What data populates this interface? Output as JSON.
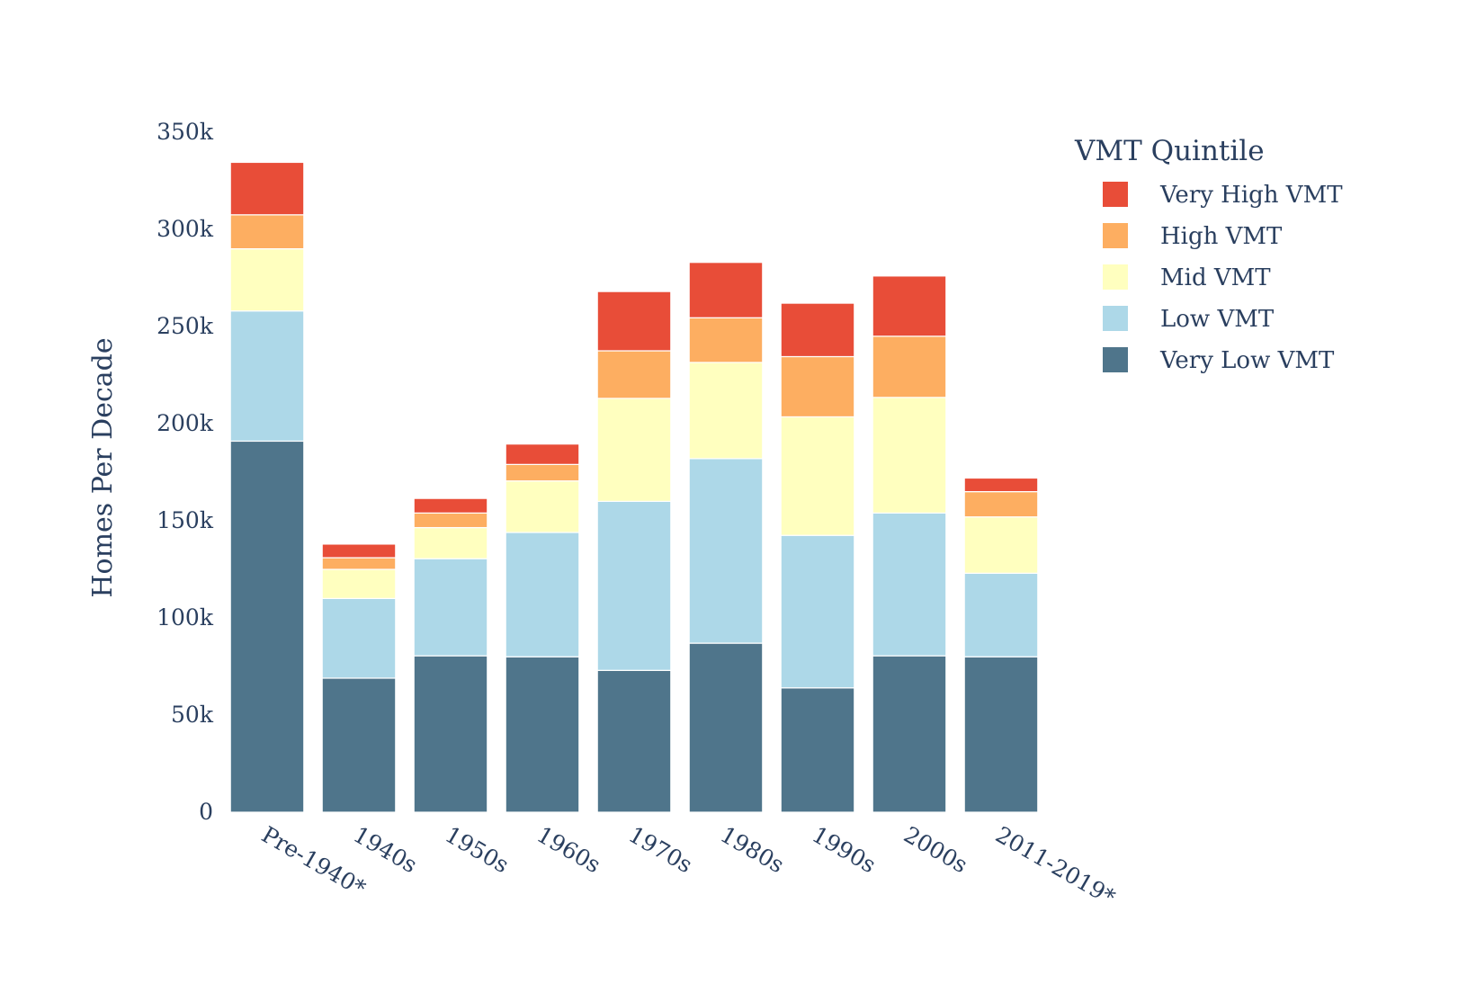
{
  "chart_data": {
    "type": "bar",
    "stacked": true,
    "title": "",
    "xlabel": "",
    "ylabel": "Homes Per Decade",
    "ylim": [
      0,
      350000
    ],
    "yticks": [
      0,
      50000,
      100000,
      150000,
      200000,
      250000,
      300000,
      350000
    ],
    "ytick_labels": [
      "0",
      "50k",
      "100k",
      "150k",
      "200k",
      "250k",
      "300k",
      "350k"
    ],
    "categories": [
      "Pre-1940*",
      "1940s",
      "1950s",
      "1960s",
      "1970s",
      "1980s",
      "1990s",
      "2000s",
      "2011-2019*"
    ],
    "legend_title": "VMT Quintile",
    "legend_placement": "top-right",
    "grid": false,
    "series": [
      {
        "name": "Very Low VMT",
        "color": "#4f758b",
        "values": [
          191000,
          69000,
          80500,
          80000,
          73000,
          87000,
          64000,
          80500,
          80000
        ]
      },
      {
        "name": "Low VMT",
        "color": "#add8e8",
        "values": [
          67000,
          41000,
          50000,
          64000,
          87000,
          95000,
          78500,
          73500,
          43000
        ]
      },
      {
        "name": "Mid VMT",
        "color": "#ffffbf",
        "values": [
          32000,
          15000,
          16000,
          26500,
          53000,
          49500,
          61000,
          59500,
          29000
        ]
      },
      {
        "name": "High VMT",
        "color": "#fdae61",
        "values": [
          17500,
          6000,
          7500,
          8500,
          24500,
          23000,
          31000,
          31500,
          13000
        ]
      },
      {
        "name": "Very High VMT",
        "color": "#e84d38",
        "values": [
          27000,
          7000,
          7500,
          10500,
          30500,
          28500,
          27500,
          31000,
          7000
        ]
      }
    ]
  }
}
